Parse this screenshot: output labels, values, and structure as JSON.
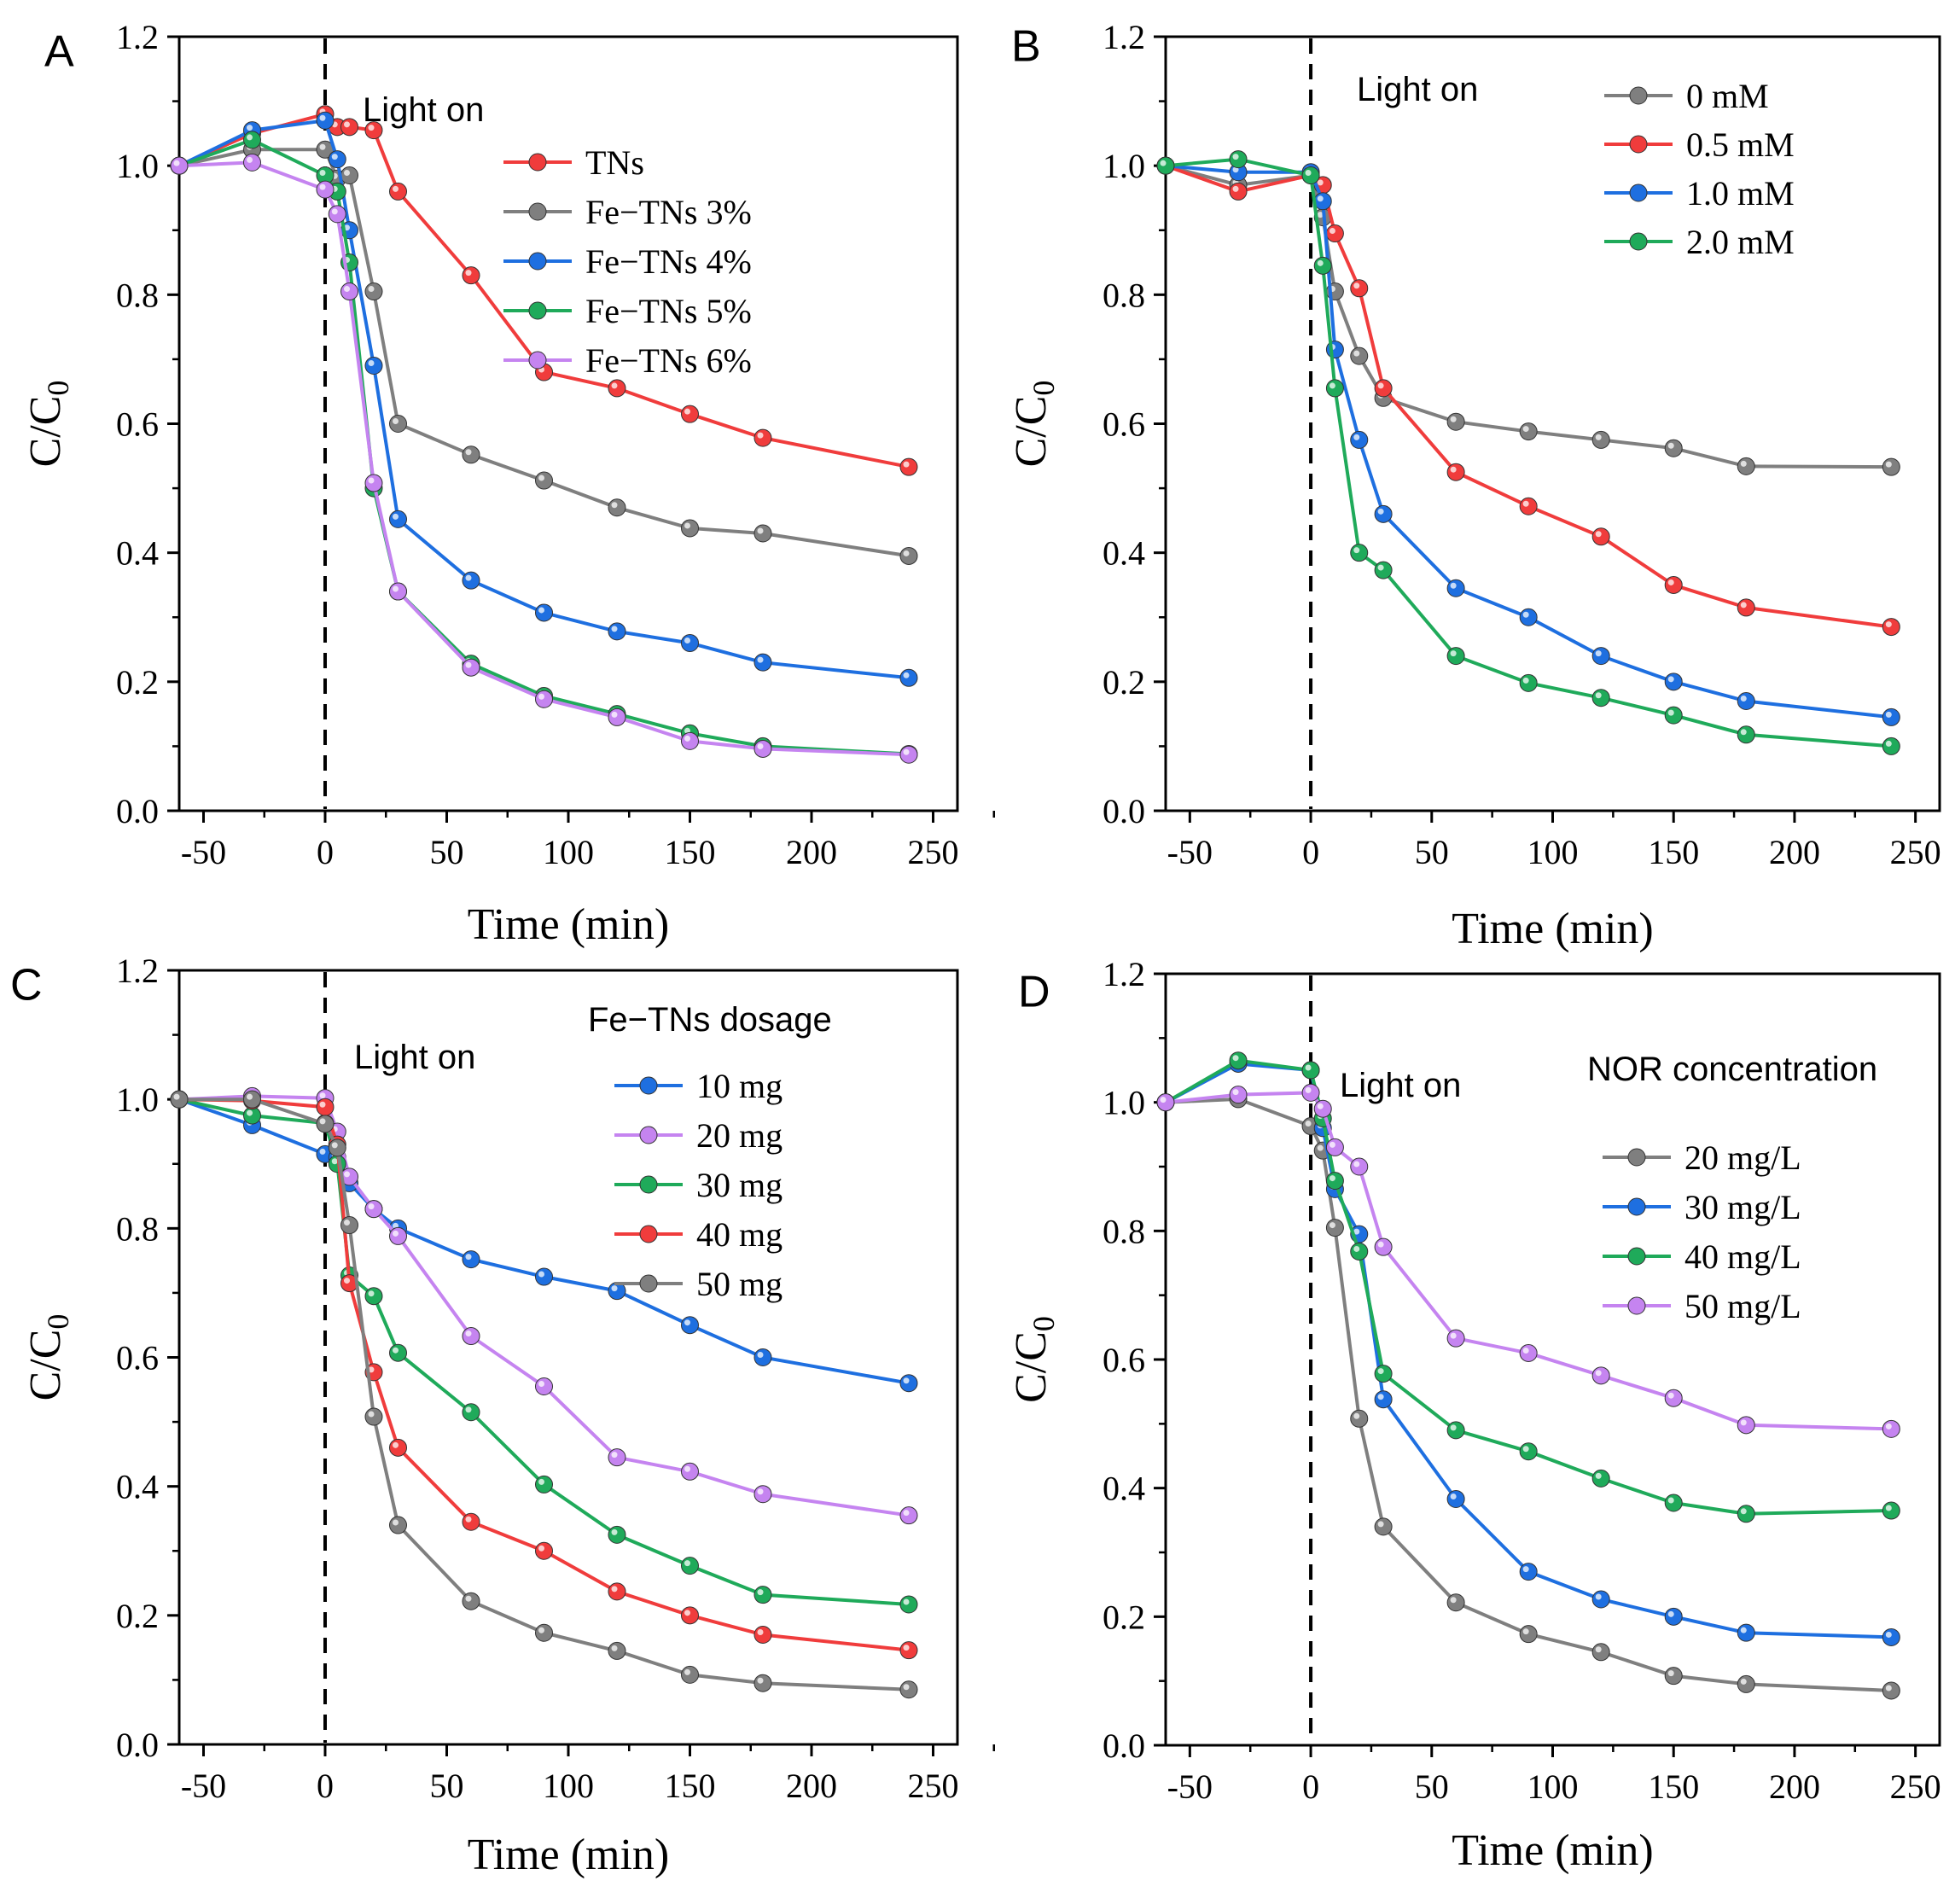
{
  "chart_data": [
    {
      "type": "line",
      "panel_label": "A",
      "xlabel": "Time (min)",
      "ylabel": "C/C",
      "ylabel_subscript": "0",
      "xlim": [
        -60,
        260
      ],
      "ylim": [
        0.0,
        1.2
      ],
      "xticks": [
        "-50",
        "0",
        "50",
        "100",
        "150",
        "200",
        "250"
      ],
      "yticks": [
        "0.0",
        "0.2",
        "0.4",
        "0.6",
        "0.8",
        "1.0",
        "1.2"
      ],
      "annotation": "Light on",
      "legend_title": "",
      "legend_position": "top-right",
      "series": [
        {
          "name": "TNs",
          "color": "#f03c3c",
          "x": [
            -60,
            -30,
            0,
            5,
            10,
            20,
            30,
            60,
            90,
            120,
            150,
            180,
            240
          ],
          "values": [
            1.0,
            1.05,
            1.08,
            1.06,
            1.06,
            1.055,
            0.96,
            0.83,
            0.68,
            0.655,
            0.615,
            0.578,
            0.533
          ]
        },
        {
          "name": "Fe−TNs 3%",
          "color": "#7f7f7f",
          "x": [
            -60,
            -30,
            0,
            5,
            10,
            20,
            30,
            60,
            90,
            120,
            150,
            180,
            240
          ],
          "values": [
            1.0,
            1.025,
            1.025,
            0.98,
            0.985,
            0.805,
            0.6,
            0.552,
            0.512,
            0.47,
            0.438,
            0.43,
            0.395
          ]
        },
        {
          "name": "Fe−TNs 4%",
          "color": "#1e6fe0",
          "x": [
            -60,
            -30,
            0,
            5,
            10,
            20,
            30,
            60,
            90,
            120,
            150,
            180,
            240
          ],
          "values": [
            1.0,
            1.055,
            1.07,
            1.01,
            0.9,
            0.69,
            0.452,
            0.357,
            0.307,
            0.278,
            0.26,
            0.23,
            0.206
          ]
        },
        {
          "name": "Fe−TNs 5%",
          "color": "#1faa5a",
          "x": [
            -60,
            -30,
            0,
            5,
            10,
            20,
            30,
            60,
            90,
            120,
            150,
            180,
            240
          ],
          "values": [
            1.0,
            1.04,
            0.985,
            0.96,
            0.85,
            0.5,
            0.34,
            0.228,
            0.178,
            0.15,
            0.12,
            0.1,
            0.088
          ]
        },
        {
          "name": "Fe−TNs 6%",
          "color": "#c584f0",
          "x": [
            -60,
            -30,
            0,
            5,
            10,
            20,
            30,
            60,
            90,
            120,
            150,
            180,
            240
          ],
          "values": [
            1.0,
            1.005,
            0.963,
            0.925,
            0.805,
            0.508,
            0.34,
            0.222,
            0.173,
            0.145,
            0.108,
            0.096,
            0.087
          ]
        }
      ]
    },
    {
      "type": "line",
      "panel_label": "B",
      "xlabel": "Time (min)",
      "ylabel": "C/C",
      "ylabel_subscript": "0",
      "xlim": [
        -60,
        260
      ],
      "ylim": [
        0.0,
        1.2
      ],
      "xticks": [
        "-50",
        "0",
        "50",
        "100",
        "150",
        "200",
        "250"
      ],
      "yticks": [
        "0.0",
        "0.2",
        "0.4",
        "0.6",
        "0.8",
        "1.0",
        "1.2"
      ],
      "annotation": "Light on",
      "legend_title": "",
      "legend_position": "top-right",
      "series": [
        {
          "name": "0 mM",
          "color": "#7f7f7f",
          "x": [
            -60,
            -30,
            0,
            5,
            10,
            20,
            30,
            60,
            90,
            120,
            150,
            180,
            240
          ],
          "values": [
            1.0,
            0.97,
            0.985,
            0.92,
            0.805,
            0.705,
            0.64,
            0.603,
            0.588,
            0.575,
            0.562,
            0.534,
            0.533
          ]
        },
        {
          "name": "0.5 mM",
          "color": "#f03c3c",
          "x": [
            -60,
            -30,
            0,
            5,
            10,
            20,
            30,
            60,
            90,
            120,
            150,
            180,
            240
          ],
          "values": [
            1.0,
            0.96,
            0.985,
            0.97,
            0.895,
            0.81,
            0.655,
            0.525,
            0.472,
            0.425,
            0.35,
            0.315,
            0.285
          ]
        },
        {
          "name": "1.0 mM",
          "color": "#1e6fe0",
          "x": [
            -60,
            -30,
            0,
            5,
            10,
            20,
            30,
            60,
            90,
            120,
            150,
            180,
            240
          ],
          "values": [
            1.0,
            0.99,
            0.99,
            0.945,
            0.715,
            0.575,
            0.46,
            0.345,
            0.3,
            0.24,
            0.2,
            0.17,
            0.145
          ]
        },
        {
          "name": "2.0 mM",
          "color": "#1faa5a",
          "x": [
            -60,
            -30,
            0,
            5,
            10,
            20,
            30,
            60,
            90,
            120,
            150,
            180,
            240
          ],
          "values": [
            1.0,
            1.01,
            0.985,
            0.845,
            0.655,
            0.4,
            0.373,
            0.24,
            0.198,
            0.175,
            0.148,
            0.118,
            0.1
          ]
        }
      ]
    },
    {
      "type": "line",
      "panel_label": "C",
      "xlabel": "Time (min)",
      "ylabel": "C/C",
      "ylabel_subscript": "0",
      "xlim": [
        -60,
        260
      ],
      "ylim": [
        0.0,
        1.2
      ],
      "xticks": [
        "-50",
        "0",
        "50",
        "100",
        "150",
        "200",
        "250"
      ],
      "yticks": [
        "0.0",
        "0.2",
        "0.4",
        "0.6",
        "0.8",
        "1.0",
        "1.2"
      ],
      "annotation": "Light on",
      "legend_title": "Fe−TNs dosage",
      "legend_position": "top-right",
      "series": [
        {
          "name": "10 mg",
          "color": "#1e6fe0",
          "x": [
            -60,
            -30,
            0,
            5,
            10,
            20,
            30,
            60,
            90,
            120,
            150,
            180,
            240
          ],
          "values": [
            1.0,
            0.96,
            0.915,
            0.91,
            0.87,
            0.83,
            0.8,
            0.752,
            0.725,
            0.703,
            0.65,
            0.6,
            0.56
          ]
        },
        {
          "name": "20 mg",
          "color": "#c584f0",
          "x": [
            -60,
            -30,
            0,
            5,
            10,
            20,
            30,
            60,
            90,
            120,
            150,
            180,
            240
          ],
          "values": [
            1.0,
            1.005,
            1.002,
            0.95,
            0.88,
            0.83,
            0.788,
            0.633,
            0.555,
            0.445,
            0.423,
            0.388,
            0.355
          ]
        },
        {
          "name": "30 mg",
          "color": "#1faa5a",
          "x": [
            -60,
            -30,
            0,
            5,
            10,
            20,
            30,
            60,
            90,
            120,
            150,
            180,
            240
          ],
          "values": [
            1.0,
            0.975,
            0.963,
            0.9,
            0.727,
            0.695,
            0.607,
            0.515,
            0.403,
            0.325,
            0.277,
            0.232,
            0.217
          ]
        },
        {
          "name": "40 mg",
          "color": "#f03c3c",
          "x": [
            -60,
            -30,
            0,
            5,
            10,
            20,
            30,
            60,
            90,
            120,
            150,
            180,
            240
          ],
          "values": [
            1.0,
            0.998,
            0.988,
            0.93,
            0.715,
            0.577,
            0.46,
            0.345,
            0.3,
            0.237,
            0.2,
            0.17,
            0.146
          ]
        },
        {
          "name": "50 mg",
          "color": "#7f7f7f",
          "x": [
            -60,
            -30,
            0,
            5,
            10,
            20,
            30,
            60,
            90,
            120,
            150,
            180,
            240
          ],
          "values": [
            1.0,
            1.0,
            0.962,
            0.925,
            0.805,
            0.508,
            0.34,
            0.222,
            0.173,
            0.145,
            0.108,
            0.095,
            0.085
          ]
        }
      ]
    },
    {
      "type": "line",
      "panel_label": "D",
      "xlabel": "Time (min)",
      "ylabel": "C/C",
      "ylabel_subscript": "0",
      "xlim": [
        -60,
        260
      ],
      "ylim": [
        0.0,
        1.2
      ],
      "xticks": [
        "-50",
        "0",
        "50",
        "100",
        "150",
        "200",
        "250"
      ],
      "yticks": [
        "0.0",
        "0.2",
        "0.4",
        "0.6",
        "0.8",
        "1.0",
        "1.2"
      ],
      "annotation": "Light on",
      "legend_title": "NOR concentration",
      "legend_position": "top-right",
      "series": [
        {
          "name": "20 mg/L",
          "color": "#7f7f7f",
          "x": [
            -60,
            -30,
            0,
            5,
            10,
            20,
            30,
            60,
            90,
            120,
            150,
            180,
            240
          ],
          "values": [
            1.0,
            1.005,
            0.963,
            0.925,
            0.805,
            0.508,
            0.34,
            0.222,
            0.173,
            0.145,
            0.108,
            0.095,
            0.085
          ]
        },
        {
          "name": "30 mg/L",
          "color": "#1e6fe0",
          "x": [
            -60,
            -30,
            0,
            5,
            10,
            20,
            30,
            60,
            90,
            120,
            150,
            180,
            240
          ],
          "values": [
            1.0,
            1.06,
            1.05,
            0.96,
            0.865,
            0.795,
            0.538,
            0.383,
            0.27,
            0.227,
            0.2,
            0.175,
            0.168
          ]
        },
        {
          "name": "40 mg/L",
          "color": "#1faa5a",
          "x": [
            -60,
            -30,
            0,
            5,
            10,
            20,
            30,
            60,
            90,
            120,
            150,
            180,
            240
          ],
          "values": [
            1.0,
            1.065,
            1.05,
            0.975,
            0.878,
            0.768,
            0.578,
            0.49,
            0.457,
            0.415,
            0.377,
            0.36,
            0.365
          ]
        },
        {
          "name": "50 mg/L",
          "color": "#c584f0",
          "x": [
            -60,
            -30,
            0,
            5,
            10,
            20,
            30,
            60,
            90,
            120,
            150,
            180,
            240
          ],
          "values": [
            1.0,
            1.012,
            1.015,
            0.99,
            0.93,
            0.9,
            0.775,
            0.633,
            0.61,
            0.575,
            0.54,
            0.498,
            0.492
          ]
        }
      ]
    }
  ]
}
